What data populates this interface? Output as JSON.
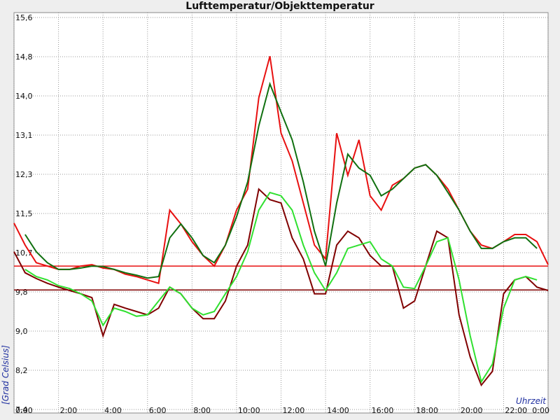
{
  "chart_data": {
    "type": "line",
    "title": "Lufttemperatur/Objekttemperatur",
    "y_label": "[Grad Celsius]",
    "x_label": "Uhrzeit",
    "x": [
      0,
      0.5,
      1,
      1.5,
      2,
      2.5,
      3,
      3.5,
      4,
      4.5,
      5,
      5.5,
      6,
      6.5,
      7,
      7.5,
      8,
      8.5,
      9,
      9.5,
      10,
      10.5,
      11,
      11.5,
      12,
      12.5,
      13,
      13.5,
      14,
      14.5,
      15,
      15.5,
      16,
      16.5,
      17,
      17.5,
      18,
      18.5,
      19,
      19.5,
      20,
      20.5,
      21,
      21.5,
      22,
      22.5,
      23,
      23.5,
      24
    ],
    "xlim": [
      0,
      24
    ],
    "xticks": [
      {
        "value": 0,
        "label": "0:00"
      },
      {
        "value": 2,
        "label": "2:00"
      },
      {
        "value": 4,
        "label": "4:00"
      },
      {
        "value": 6,
        "label": "6:00"
      },
      {
        "value": 8,
        "label": "8:00"
      },
      {
        "value": 10,
        "label": "10:00"
      },
      {
        "value": 12,
        "label": "12:00"
      },
      {
        "value": 14,
        "label": "14:00"
      },
      {
        "value": 16,
        "label": "16:00"
      },
      {
        "value": 18,
        "label": "18:00"
      },
      {
        "value": 20,
        "label": "20:00"
      },
      {
        "value": 22,
        "label": "22:00"
      },
      {
        "value": 24,
        "label": "0:00"
      }
    ],
    "ylim": [
      7.4,
      15.6
    ],
    "yticks": [
      {
        "value": 7.4,
        "label": "7,4"
      },
      {
        "value": 8.22,
        "label": "8,2"
      },
      {
        "value": 9.04,
        "label": "9,0"
      },
      {
        "value": 9.86,
        "label": "9,8"
      },
      {
        "value": 10.68,
        "label": "10,7"
      },
      {
        "value": 11.5,
        "label": "11,5"
      },
      {
        "value": 12.32,
        "label": "12,3"
      },
      {
        "value": 13.14,
        "label": "13,1"
      },
      {
        "value": 13.96,
        "label": "14,0"
      },
      {
        "value": 14.78,
        "label": "14,8"
      },
      {
        "value": 15.6,
        "label": "15,6"
      }
    ],
    "grid": true,
    "series": [
      {
        "color": "#e81010",
        "values": [
          11.3,
          10.84,
          10.47,
          10.4,
          10.33,
          10.33,
          10.4,
          10.43,
          10.36,
          10.33,
          10.23,
          10.18,
          10.11,
          10.04,
          11.57,
          11.28,
          10.91,
          10.62,
          10.4,
          10.84,
          11.57,
          12.01,
          13.92,
          14.79,
          13.18,
          12.6,
          11.72,
          10.84,
          10.55,
          13.18,
          12.3,
          13.04,
          11.87,
          11.57,
          12.09,
          12.23,
          12.45,
          12.52,
          12.3,
          12.01,
          11.57,
          11.13,
          10.84,
          10.77,
          10.91,
          11.06,
          11.06,
          10.91,
          10.43
        ]
      },
      {
        "color": "#800000",
        "values": [
          10.7,
          10.26,
          10.14,
          10.04,
          9.96,
          9.89,
          9.82,
          9.74,
          8.94,
          9.6,
          9.52,
          9.45,
          9.38,
          9.52,
          9.96,
          9.82,
          9.52,
          9.3,
          9.3,
          9.67,
          10.4,
          10.84,
          12.01,
          11.79,
          11.72,
          10.99,
          10.55,
          9.82,
          9.82,
          10.84,
          11.13,
          10.99,
          10.62,
          10.4,
          10.4,
          9.52,
          9.67,
          10.4,
          11.13,
          10.99,
          9.38,
          8.5,
          7.91,
          8.2,
          9.82,
          10.11,
          10.18,
          9.96,
          9.89
        ]
      },
      {
        "color": "#107010",
        "values": [
          null,
          11.06,
          10.7,
          10.47,
          10.33,
          10.33,
          10.36,
          10.4,
          10.39,
          10.33,
          10.26,
          10.21,
          10.15,
          10.18,
          10.99,
          11.28,
          10.99,
          10.62,
          10.47,
          10.84,
          11.43,
          12.16,
          13.33,
          14.21,
          13.62,
          13.04,
          12.16,
          11.13,
          10.4,
          11.72,
          12.74,
          12.45,
          12.3,
          11.87,
          12.01,
          12.23,
          12.45,
          12.52,
          12.3,
          11.94,
          11.57,
          11.13,
          10.77,
          10.77,
          10.91,
          10.99,
          10.99,
          10.77,
          null
        ]
      },
      {
        "color": "#30e030",
        "values": [
          null,
          10.33,
          10.18,
          10.11,
          9.99,
          9.93,
          9.82,
          9.67,
          9.16,
          9.52,
          9.45,
          9.35,
          9.38,
          9.67,
          9.96,
          9.82,
          9.52,
          9.38,
          9.45,
          9.82,
          10.18,
          10.7,
          11.57,
          11.94,
          11.87,
          11.57,
          10.84,
          10.26,
          9.89,
          10.26,
          10.77,
          10.84,
          10.91,
          10.55,
          10.4,
          9.96,
          9.93,
          10.4,
          10.91,
          10.99,
          10.11,
          8.94,
          7.98,
          8.35,
          9.52,
          10.11,
          10.18,
          10.11,
          null
        ]
      }
    ],
    "hlines": [
      {
        "value": 10.4,
        "color": "#e81010"
      },
      {
        "value": 9.9,
        "color": "#800000"
      }
    ]
  }
}
